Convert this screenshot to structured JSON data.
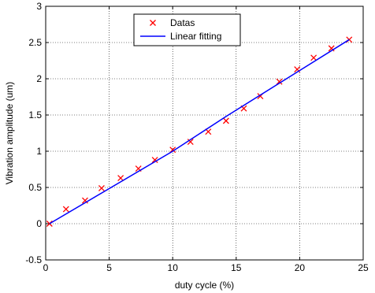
{
  "chart_data": {
    "type": "scatter",
    "title": "",
    "xlabel": "duty cycle (%)",
    "ylabel": "Vibration amplitude (um)",
    "xlim": [
      0,
      25
    ],
    "ylim": [
      -0.5,
      3
    ],
    "xticks": [
      0,
      5,
      10,
      15,
      20,
      25
    ],
    "xtick_labels": [
      "0",
      "5",
      "10",
      "15",
      "20",
      "25"
    ],
    "yticks": [
      -0.5,
      0,
      0.5,
      1,
      1.5,
      2,
      2.5,
      3
    ],
    "ytick_labels": [
      "-0.5",
      "0",
      "0.5",
      "1",
      "1.5",
      "2",
      "2.5",
      "3"
    ],
    "grid": true,
    "legend_position": "top-center",
    "series": [
      {
        "name": "Datas",
        "kind": "markers",
        "marker": "x",
        "color": "#ff0000",
        "x": [
          0.3,
          1.6,
          3.1,
          4.4,
          5.9,
          7.3,
          8.6,
          10.0,
          11.4,
          12.8,
          14.2,
          15.6,
          16.9,
          18.4,
          19.8,
          21.1,
          22.5,
          23.9
        ],
        "y": [
          0.0,
          0.2,
          0.32,
          0.49,
          0.63,
          0.76,
          0.88,
          1.02,
          1.13,
          1.27,
          1.42,
          1.59,
          1.76,
          1.96,
          2.13,
          2.29,
          2.42,
          2.54
        ]
      },
      {
        "name": "Linear fitting",
        "kind": "line",
        "color": "#0000ff",
        "x": [
          0.3,
          10.0,
          14.2,
          23.9
        ],
        "y": [
          0.0,
          1.0,
          1.48,
          2.54
        ]
      }
    ]
  }
}
